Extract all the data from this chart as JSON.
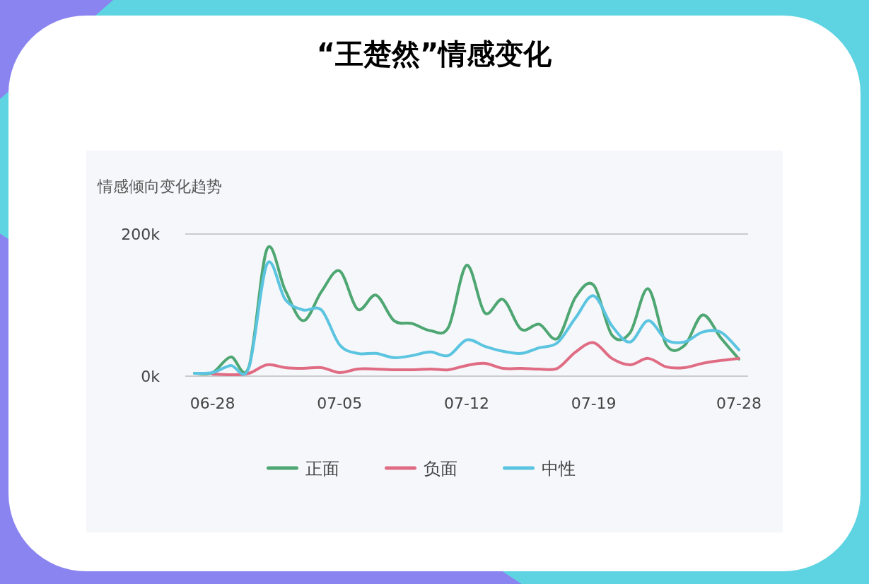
{
  "chart_data": {
    "type": "line",
    "title": "“王楚然”情感变化",
    "subtitle": "情感倾向变化趋势",
    "categories": [
      null,
      "06-28",
      null,
      null,
      null,
      null,
      null,
      null,
      "07-05",
      null,
      null,
      null,
      null,
      null,
      null,
      "07-12",
      null,
      null,
      null,
      null,
      null,
      null,
      "07-19",
      null,
      null,
      null,
      null,
      null,
      null,
      null,
      "07-28"
    ],
    "series": [
      {
        "name": "正面",
        "color": "#4ea672",
        "values": [
          4000,
          5000,
          27000,
          13000,
          179000,
          121000,
          78000,
          119000,
          148000,
          94000,
          114000,
          78000,
          74000,
          64000,
          69000,
          156000,
          89000,
          108000,
          66000,
          73000,
          53000,
          111000,
          128000,
          58000,
          61000,
          123000,
          44000,
          43000,
          86000,
          54000,
          24000
        ]
      },
      {
        "name": "负面",
        "color": "#e06c84",
        "values": [
          null,
          3000,
          2000,
          4000,
          16000,
          12000,
          11000,
          12000,
          5000,
          10000,
          10000,
          9000,
          9000,
          10000,
          9000,
          15000,
          18000,
          11000,
          11000,
          10000,
          11000,
          34000,
          47000,
          25000,
          16000,
          25000,
          13000,
          12000,
          18000,
          22000,
          25000
        ]
      },
      {
        "name": "中性",
        "color": "#5bc4e0",
        "values": [
          4000,
          5000,
          15000,
          12000,
          158000,
          108000,
          93000,
          93000,
          44000,
          32000,
          32000,
          26000,
          29000,
          34000,
          29000,
          51000,
          42000,
          35000,
          32000,
          40000,
          47000,
          82000,
          113000,
          71000,
          48000,
          78000,
          51000,
          48000,
          62000,
          62000,
          37000
        ]
      }
    ],
    "ylim": [
      0,
      200000
    ],
    "yticks": [
      {
        "value": 0,
        "label": "0k"
      },
      {
        "value": 200000,
        "label": "200k"
      }
    ],
    "legend": "bottom",
    "marker": "none",
    "line_style": "solid"
  }
}
